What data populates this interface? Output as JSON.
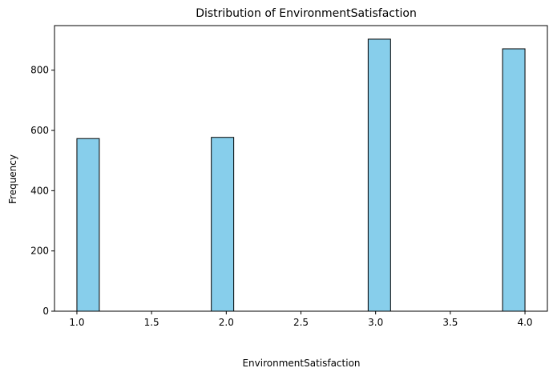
{
  "chart_data": {
    "type": "bar",
    "title": "Distribution of EnvironmentSatisfaction",
    "xlabel": "EnvironmentSatisfaction",
    "ylabel": "Frequency",
    "bins": [
      {
        "x0": 1.0,
        "x1": 1.15,
        "count": 573
      },
      {
        "x0": 1.15,
        "x1": 1.3,
        "count": 0
      },
      {
        "x0": 1.3,
        "x1": 1.45,
        "count": 0
      },
      {
        "x0": 1.45,
        "x1": 1.6,
        "count": 0
      },
      {
        "x0": 1.6,
        "x1": 1.75,
        "count": 0
      },
      {
        "x0": 1.75,
        "x1": 1.9,
        "count": 0
      },
      {
        "x0": 1.9,
        "x1": 2.05,
        "count": 577
      },
      {
        "x0": 2.05,
        "x1": 2.2,
        "count": 0
      },
      {
        "x0": 2.2,
        "x1": 2.35,
        "count": 0
      },
      {
        "x0": 2.35,
        "x1": 2.5,
        "count": 0
      },
      {
        "x0": 2.5,
        "x1": 2.65,
        "count": 0
      },
      {
        "x0": 2.65,
        "x1": 2.8,
        "count": 0
      },
      {
        "x0": 2.8,
        "x1": 2.95,
        "count": 0
      },
      {
        "x0": 2.95,
        "x1": 3.1,
        "count": 903
      },
      {
        "x0": 3.1,
        "x1": 3.25,
        "count": 0
      },
      {
        "x0": 3.25,
        "x1": 3.4,
        "count": 0
      },
      {
        "x0": 3.4,
        "x1": 3.55,
        "count": 0
      },
      {
        "x0": 3.55,
        "x1": 3.7,
        "count": 0
      },
      {
        "x0": 3.7,
        "x1": 3.85,
        "count": 0
      },
      {
        "x0": 3.85,
        "x1": 4.0,
        "count": 871
      }
    ],
    "xlim": [
      0.85,
      4.15
    ],
    "ylim": [
      0,
      948
    ],
    "xticks": [
      "1.0",
      "1.5",
      "2.0",
      "2.5",
      "3.0",
      "3.5",
      "4.0"
    ],
    "yticks": [
      "0",
      "200",
      "400",
      "600",
      "800"
    ],
    "bar_color": "#87CEEB",
    "edge_color": "#000000",
    "grid": false
  }
}
